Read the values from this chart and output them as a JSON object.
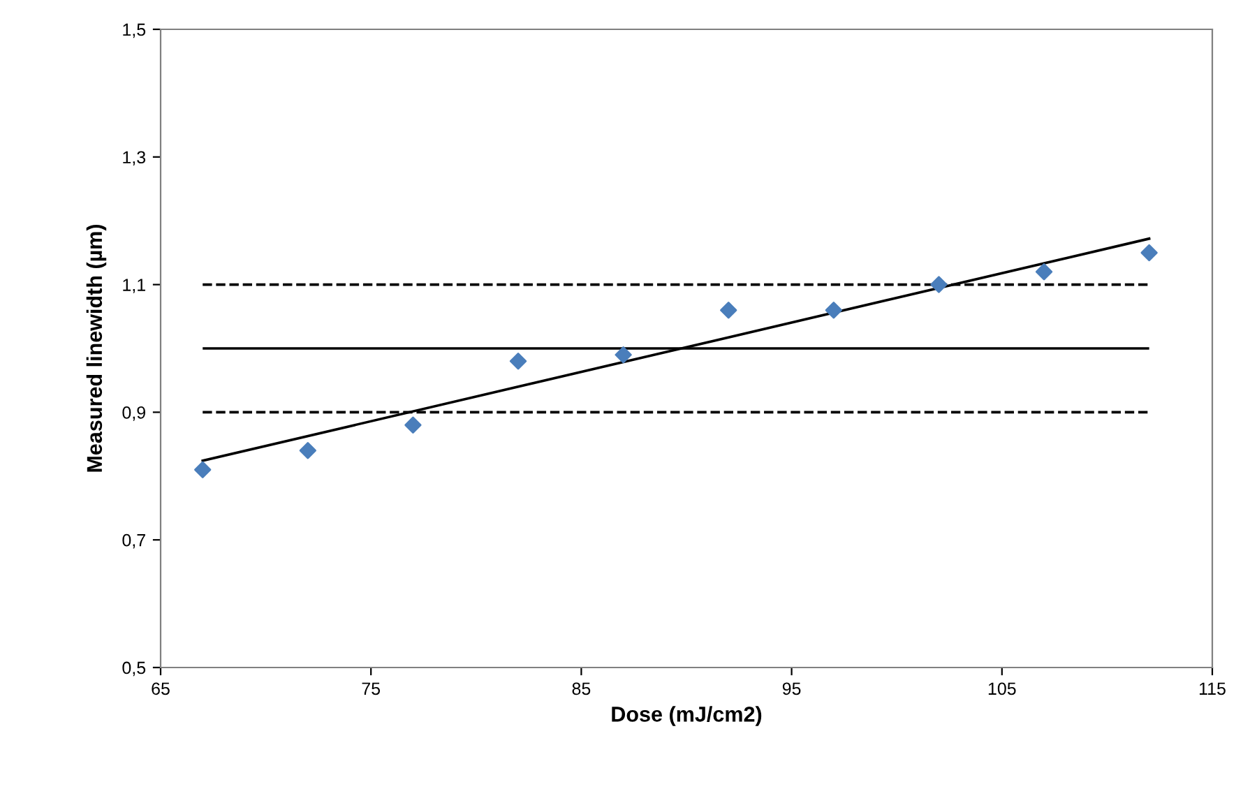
{
  "chart_data": {
    "type": "scatter",
    "xlabel": "Dose (mJ/cm2)",
    "ylabel": "Measured linewidth (µm)",
    "xlim": [
      65,
      115
    ],
    "xticks": [
      65,
      75,
      85,
      95,
      105,
      115
    ],
    "ylim": [
      0.5,
      1.5
    ],
    "yticks": [
      {
        "value": 0.5,
        "label": "0,5"
      },
      {
        "value": 0.7,
        "label": "0,7"
      },
      {
        "value": 0.9,
        "label": "0,9"
      },
      {
        "value": 1.1,
        "label": "1,1"
      },
      {
        "value": 1.3,
        "label": "1,3"
      },
      {
        "value": 1.5,
        "label": "1,5"
      }
    ],
    "grid": false,
    "legend": false,
    "series": [
      {
        "marker": "diamond",
        "color": "#4a7ebb",
        "x": [
          67,
          72,
          77,
          82,
          87,
          92,
          97,
          102,
          107,
          112
        ],
        "values": [
          0.81,
          0.84,
          0.88,
          0.98,
          0.99,
          1.06,
          1.06,
          1.1,
          1.12,
          1.15
        ]
      },
      {
        "type": "line",
        "marker": "none",
        "line_style": "solid",
        "color": "#000000",
        "x": [
          67,
          112
        ],
        "values": [
          0.824,
          1.172
        ]
      }
    ],
    "ref_lines": [
      {
        "axis": "y",
        "value": 1.0,
        "line_style": "solid",
        "color": "#000000"
      },
      {
        "axis": "y",
        "value": 0.9,
        "line_style": "dashed",
        "color": "#000000"
      },
      {
        "axis": "y",
        "value": 1.1,
        "line_style": "dashed",
        "color": "#000000"
      }
    ]
  }
}
